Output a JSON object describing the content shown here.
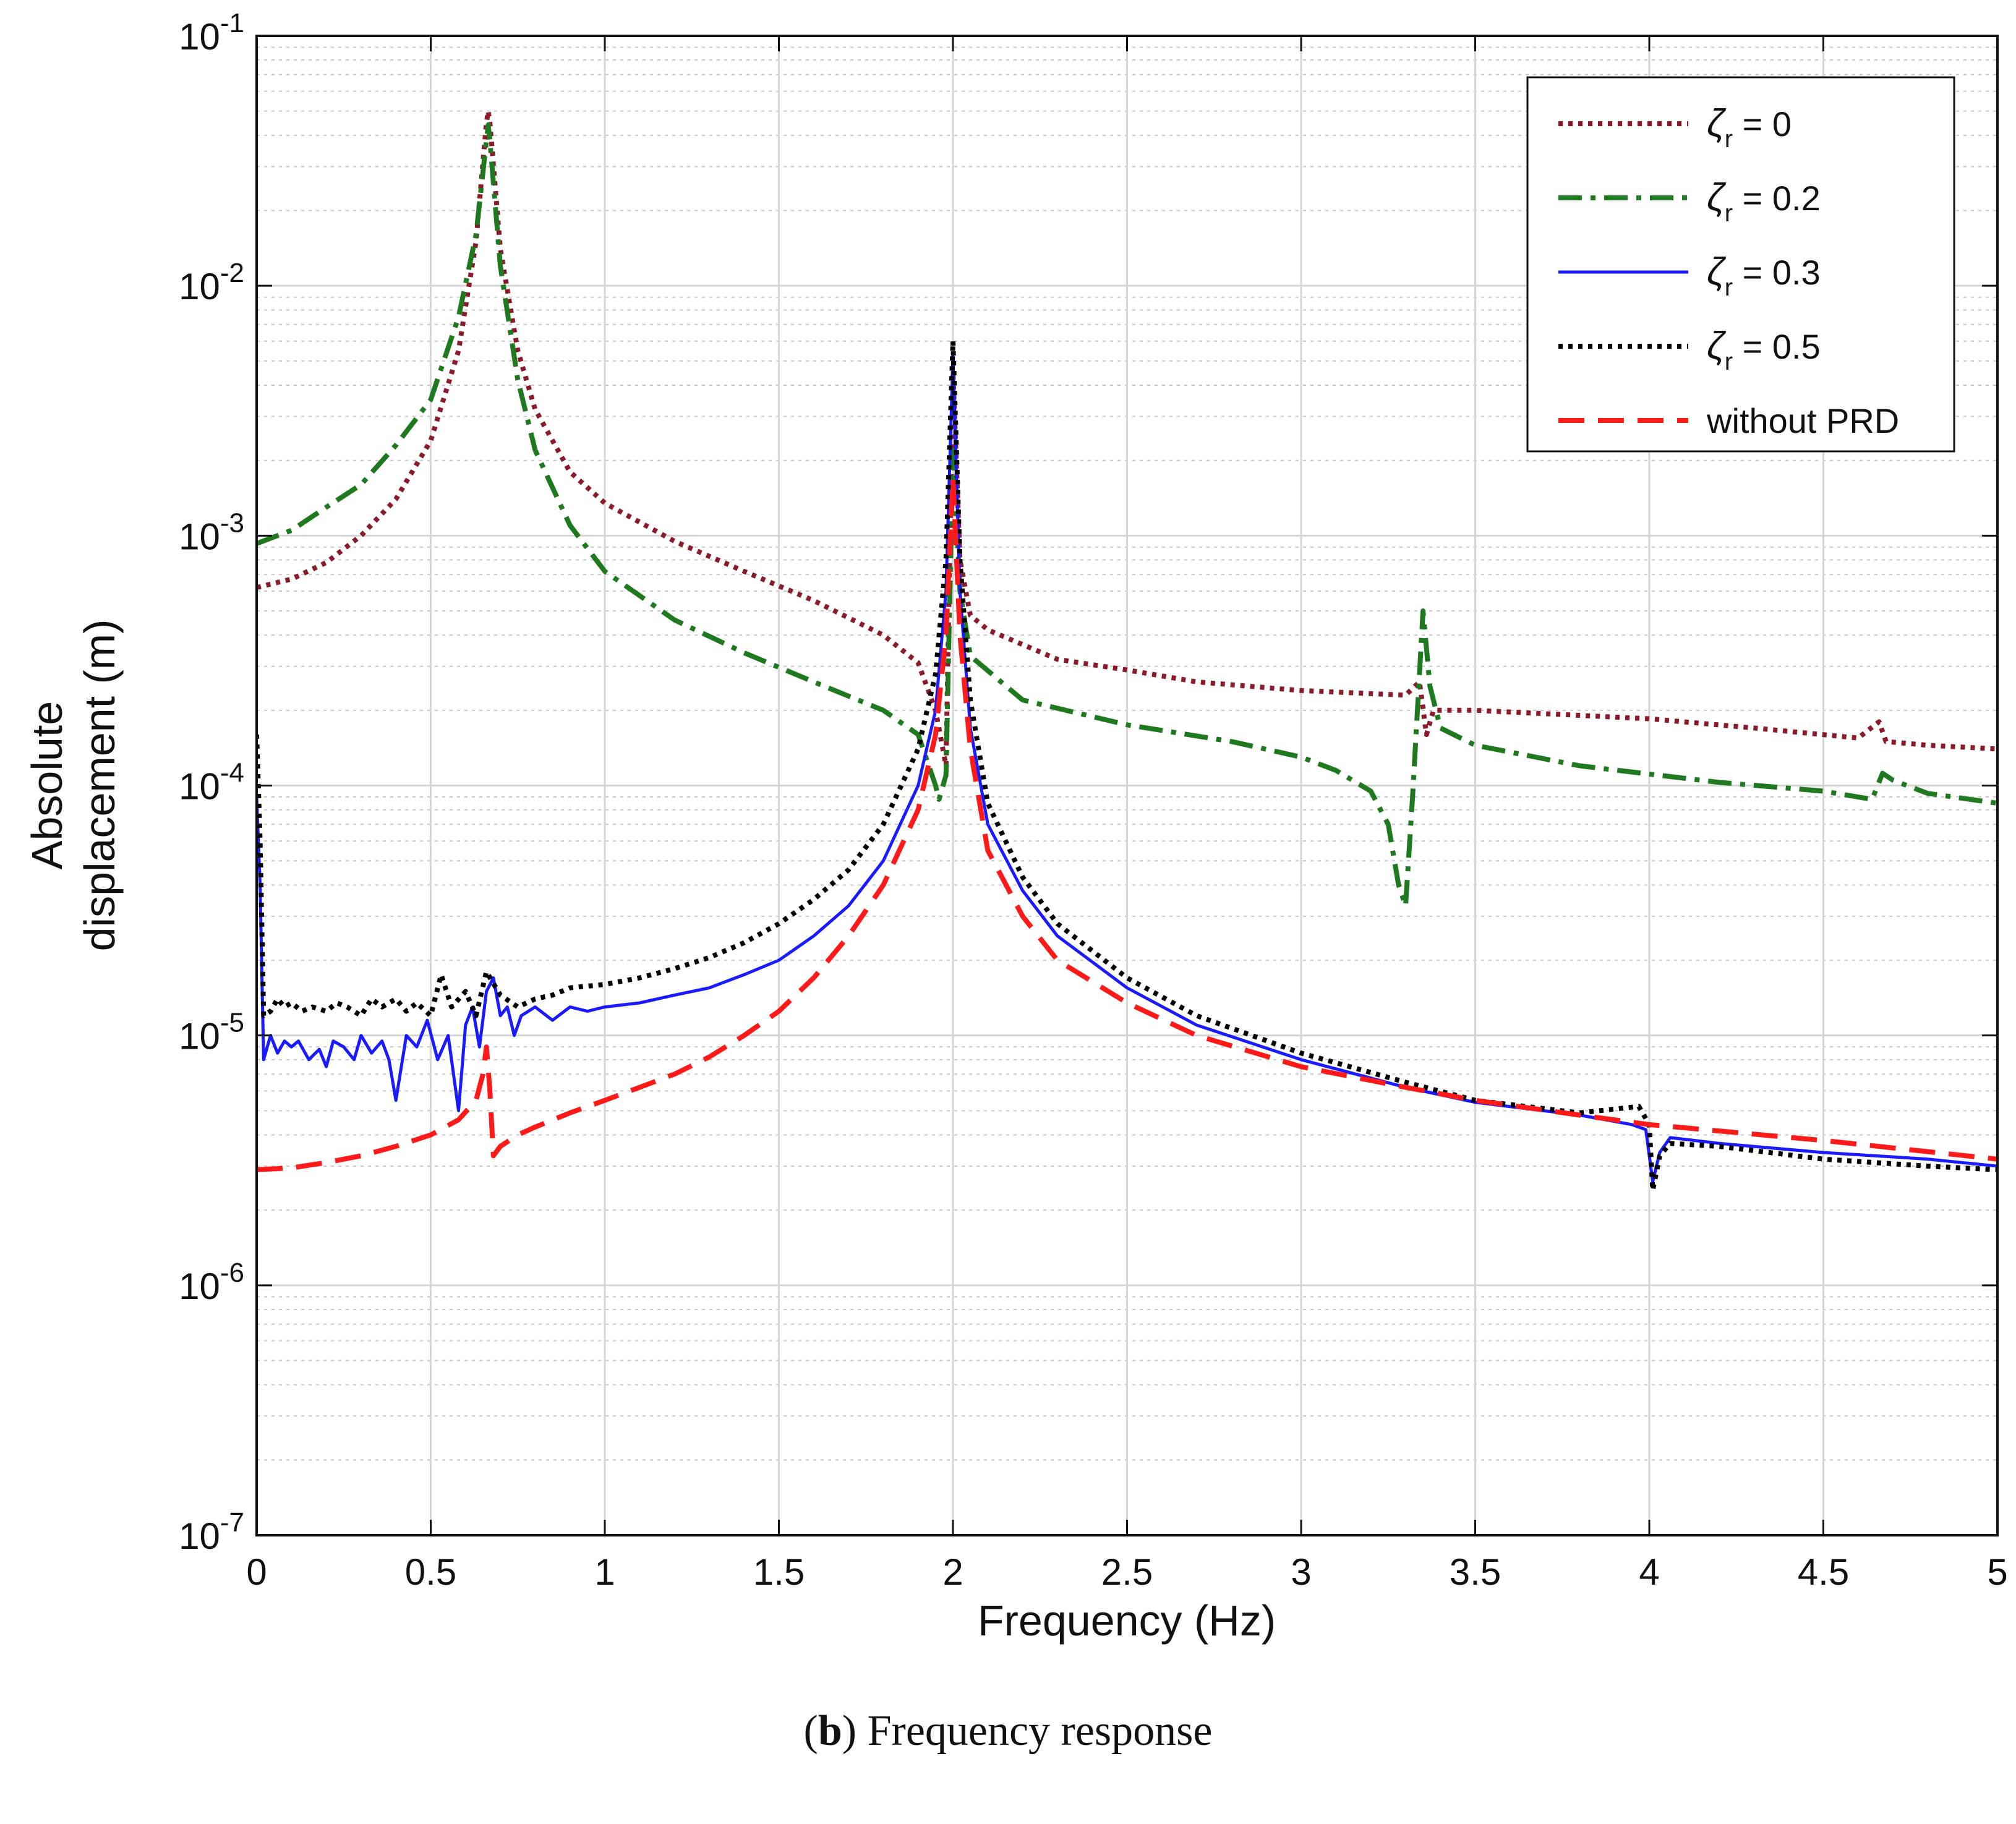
{
  "chart_data": {
    "type": "line",
    "title": "",
    "xlabel": "Frequency (Hz)",
    "ylabel_line1": "Absolute",
    "ylabel_line2": "displacement (m)",
    "xscale": "linear",
    "yscale": "log",
    "xlim": [
      0,
      5
    ],
    "ylim": [
      1e-07,
      0.1
    ],
    "grid": true,
    "minor_grid": true,
    "legend_position": "top-right",
    "x_ticks": [
      {
        "value": 0,
        "label": "0"
      },
      {
        "value": 0.5,
        "label": "0.5"
      },
      {
        "value": 1,
        "label": "1"
      },
      {
        "value": 1.5,
        "label": "1.5"
      },
      {
        "value": 2,
        "label": "2"
      },
      {
        "value": 2.5,
        "label": "2.5"
      },
      {
        "value": 3,
        "label": "3"
      },
      {
        "value": 3.5,
        "label": "3.5"
      },
      {
        "value": 4,
        "label": "4"
      },
      {
        "value": 4.5,
        "label": "4.5"
      },
      {
        "value": 5,
        "label": "5"
      }
    ],
    "y_ticks": [
      {
        "exponent": -7,
        "label_base": "10",
        "label_exp": "-7"
      },
      {
        "exponent": -6,
        "label_base": "10",
        "label_exp": "-6"
      },
      {
        "exponent": -5,
        "label_base": "10",
        "label_exp": "-5"
      },
      {
        "exponent": -4,
        "label_base": "10",
        "label_exp": "-4"
      },
      {
        "exponent": -3,
        "label_base": "10",
        "label_exp": "-3"
      },
      {
        "exponent": -2,
        "label_base": "10",
        "label_exp": "-2"
      },
      {
        "exponent": -1,
        "label_base": "10",
        "label_exp": "-1"
      }
    ],
    "series": [
      {
        "name": "ζr = 0",
        "legend_symbol": "ζ",
        "legend_sub": "r",
        "legend_value": " = 0",
        "color": "#8b1a2b",
        "style": "dotted",
        "points": [
          [
            0,
            0.00062
          ],
          [
            0.1,
            0.00067
          ],
          [
            0.2,
            0.00078
          ],
          [
            0.3,
            0.001
          ],
          [
            0.4,
            0.0014
          ],
          [
            0.5,
            0.0024
          ],
          [
            0.58,
            0.0055
          ],
          [
            0.63,
            0.015
          ],
          [
            0.66,
            0.045
          ],
          [
            0.665,
            0.05
          ],
          [
            0.67,
            0.045
          ],
          [
            0.7,
            0.014
          ],
          [
            0.75,
            0.0055
          ],
          [
            0.8,
            0.0032
          ],
          [
            0.9,
            0.0018
          ],
          [
            1.0,
            0.00135
          ],
          [
            1.2,
            0.00095
          ],
          [
            1.4,
            0.00072
          ],
          [
            1.6,
            0.00055
          ],
          [
            1.8,
            0.0004
          ],
          [
            1.9,
            0.00031
          ],
          [
            1.95,
            0.0002
          ],
          [
            1.98,
            0.00012
          ],
          [
            2.0,
            0.0045
          ],
          [
            2.02,
            0.0008
          ],
          [
            2.05,
            0.00048
          ],
          [
            2.1,
            0.00042
          ],
          [
            2.3,
            0.00032
          ],
          [
            2.5,
            0.00029
          ],
          [
            2.7,
            0.00026
          ],
          [
            3.0,
            0.00024
          ],
          [
            3.3,
            0.00023
          ],
          [
            3.34,
            0.00026
          ],
          [
            3.36,
            0.00016
          ],
          [
            3.38,
            0.0002
          ],
          [
            3.5,
            0.0002
          ],
          [
            4.0,
            0.000185
          ],
          [
            4.3,
            0.00017
          ],
          [
            4.6,
            0.000155
          ],
          [
            4.66,
            0.00018
          ],
          [
            4.68,
            0.00015
          ],
          [
            4.8,
            0.000145
          ],
          [
            5.0,
            0.00014
          ]
        ]
      },
      {
        "name": "ζr = 0.2",
        "legend_symbol": "ζ",
        "legend_sub": "r",
        "legend_value": " = 0.2",
        "color": "#1f7a1f",
        "style": "dashdot",
        "points": [
          [
            0,
            0.00093
          ],
          [
            0.1,
            0.00105
          ],
          [
            0.2,
            0.0013
          ],
          [
            0.3,
            0.0016
          ],
          [
            0.4,
            0.0023
          ],
          [
            0.5,
            0.0035
          ],
          [
            0.58,
            0.0075
          ],
          [
            0.63,
            0.016
          ],
          [
            0.66,
            0.038
          ],
          [
            0.665,
            0.044
          ],
          [
            0.67,
            0.038
          ],
          [
            0.7,
            0.012
          ],
          [
            0.75,
            0.0042
          ],
          [
            0.8,
            0.0022
          ],
          [
            0.9,
            0.0011
          ],
          [
            1.0,
            0.00072
          ],
          [
            1.2,
            0.00046
          ],
          [
            1.4,
            0.00034
          ],
          [
            1.6,
            0.00026
          ],
          [
            1.8,
            0.0002
          ],
          [
            1.9,
            0.00016
          ],
          [
            1.95,
            0.0001
          ],
          [
            1.96,
            8.8e-05
          ],
          [
            1.98,
            0.00011
          ],
          [
            2.0,
            0.0022
          ],
          [
            2.02,
            0.0006
          ],
          [
            2.05,
            0.00033
          ],
          [
            2.2,
            0.00022
          ],
          [
            2.5,
            0.000175
          ],
          [
            2.8,
            0.00015
          ],
          [
            3.0,
            0.00013
          ],
          [
            3.1,
            0.000115
          ],
          [
            3.2,
            9.5e-05
          ],
          [
            3.25,
            7e-05
          ],
          [
            3.28,
            4e-05
          ],
          [
            3.3,
            3.3e-05
          ],
          [
            3.32,
            9e-05
          ],
          [
            3.35,
            0.0005
          ],
          [
            3.37,
            0.00025
          ],
          [
            3.4,
            0.00017
          ],
          [
            3.5,
            0.000145
          ],
          [
            3.8,
            0.00012
          ],
          [
            4.2,
            0.000103
          ],
          [
            4.5,
            9.5e-05
          ],
          [
            4.64,
            8.8e-05
          ],
          [
            4.67,
            0.000112
          ],
          [
            4.7,
            0.000105
          ],
          [
            4.8,
            9.3e-05
          ],
          [
            5.0,
            8.5e-05
          ]
        ]
      },
      {
        "name": "ζr = 0.3",
        "legend_symbol": "ζ",
        "legend_sub": "r",
        "legend_value": " = 0.3",
        "color": "#1a1aff",
        "style": "solid",
        "points": [
          [
            0,
            9e-05
          ],
          [
            0.01,
            4e-05
          ],
          [
            0.02,
            8e-06
          ],
          [
            0.04,
            1e-05
          ],
          [
            0.06,
            8.5e-06
          ],
          [
            0.08,
            9.5e-06
          ],
          [
            0.1,
            9e-06
          ],
          [
            0.12,
            9.5e-06
          ],
          [
            0.15,
            8e-06
          ],
          [
            0.18,
            8.8e-06
          ],
          [
            0.2,
            7.5e-06
          ],
          [
            0.22,
            9.5e-06
          ],
          [
            0.25,
            9e-06
          ],
          [
            0.28,
            8e-06
          ],
          [
            0.3,
            1e-05
          ],
          [
            0.33,
            8.5e-06
          ],
          [
            0.36,
            9.5e-06
          ],
          [
            0.38,
            8e-06
          ],
          [
            0.4,
            5.5e-06
          ],
          [
            0.43,
            1e-05
          ],
          [
            0.46,
            9e-06
          ],
          [
            0.49,
            1.15e-05
          ],
          [
            0.52,
            8e-06
          ],
          [
            0.55,
            1e-05
          ],
          [
            0.58,
            5e-06
          ],
          [
            0.6,
            1.1e-05
          ],
          [
            0.62,
            1.3e-05
          ],
          [
            0.64,
            9e-06
          ],
          [
            0.66,
            1.5e-05
          ],
          [
            0.68,
            1.7e-05
          ],
          [
            0.7,
            1.2e-05
          ],
          [
            0.72,
            1.3e-05
          ],
          [
            0.74,
            1e-05
          ],
          [
            0.76,
            1.2e-05
          ],
          [
            0.8,
            1.3e-05
          ],
          [
            0.85,
            1.15e-05
          ],
          [
            0.9,
            1.3e-05
          ],
          [
            0.95,
            1.25e-05
          ],
          [
            1.0,
            1.3e-05
          ],
          [
            1.1,
            1.35e-05
          ],
          [
            1.2,
            1.45e-05
          ],
          [
            1.3,
            1.55e-05
          ],
          [
            1.4,
            1.75e-05
          ],
          [
            1.5,
            2e-05
          ],
          [
            1.6,
            2.5e-05
          ],
          [
            1.7,
            3.3e-05
          ],
          [
            1.8,
            5e-05
          ],
          [
            1.9,
            0.0001
          ],
          [
            1.95,
            0.0002
          ],
          [
            1.98,
            0.0006
          ],
          [
            2.0,
            0.0052
          ],
          [
            2.02,
            0.0006
          ],
          [
            2.05,
            0.00017
          ],
          [
            2.1,
            7e-05
          ],
          [
            2.2,
            3.8e-05
          ],
          [
            2.3,
            2.5e-05
          ],
          [
            2.5,
            1.55e-05
          ],
          [
            2.7,
            1.1e-05
          ],
          [
            3.0,
            8e-06
          ],
          [
            3.3,
            6.2e-06
          ],
          [
            3.5,
            5.4e-06
          ],
          [
            3.8,
            4.8e-06
          ],
          [
            3.95,
            4.4e-06
          ],
          [
            3.99,
            4.2e-06
          ],
          [
            4.01,
            2.6e-06
          ],
          [
            4.03,
            3.4e-06
          ],
          [
            4.06,
            3.9e-06
          ],
          [
            4.2,
            3.7e-06
          ],
          [
            4.5,
            3.4e-06
          ],
          [
            4.8,
            3.2e-06
          ],
          [
            5.0,
            3e-06
          ]
        ]
      },
      {
        "name": "ζr = 0.5",
        "legend_symbol": "ζ",
        "legend_sub": "r",
        "legend_value": " = 0.5",
        "color": "#000000",
        "style": "dotted",
        "points": [
          [
            0,
            0.00016
          ],
          [
            0.01,
            6e-05
          ],
          [
            0.02,
            1.2e-05
          ],
          [
            0.04,
            1.25e-05
          ],
          [
            0.06,
            1.4e-05
          ],
          [
            0.08,
            1.3e-05
          ],
          [
            0.1,
            1.35e-05
          ],
          [
            0.13,
            1.25e-05
          ],
          [
            0.16,
            1.3e-05
          ],
          [
            0.2,
            1.25e-05
          ],
          [
            0.23,
            1.35e-05
          ],
          [
            0.26,
            1.3e-05
          ],
          [
            0.3,
            1.2e-05
          ],
          [
            0.33,
            1.4e-05
          ],
          [
            0.36,
            1.3e-05
          ],
          [
            0.4,
            1.4e-05
          ],
          [
            0.43,
            1.25e-05
          ],
          [
            0.46,
            1.35e-05
          ],
          [
            0.5,
            1.2e-05
          ],
          [
            0.53,
            1.75e-05
          ],
          [
            0.56,
            1.3e-05
          ],
          [
            0.6,
            1.5e-05
          ],
          [
            0.63,
            1.2e-05
          ],
          [
            0.66,
            1.8e-05
          ],
          [
            0.7,
            1.45e-05
          ],
          [
            0.75,
            1.3e-05
          ],
          [
            0.8,
            1.4e-05
          ],
          [
            0.85,
            1.45e-05
          ],
          [
            0.9,
            1.55e-05
          ],
          [
            1.0,
            1.6e-05
          ],
          [
            1.1,
            1.7e-05
          ],
          [
            1.2,
            1.85e-05
          ],
          [
            1.3,
            2.05e-05
          ],
          [
            1.4,
            2.35e-05
          ],
          [
            1.5,
            2.8e-05
          ],
          [
            1.6,
            3.5e-05
          ],
          [
            1.7,
            4.6e-05
          ],
          [
            1.8,
            7e-05
          ],
          [
            1.9,
            0.00014
          ],
          [
            1.95,
            0.00028
          ],
          [
            1.98,
            0.0008
          ],
          [
            2.0,
            0.006
          ],
          [
            2.02,
            0.0008
          ],
          [
            2.05,
            0.00022
          ],
          [
            2.1,
            8.5e-05
          ],
          [
            2.2,
            4.3e-05
          ],
          [
            2.3,
            2.8e-05
          ],
          [
            2.5,
            1.7e-05
          ],
          [
            2.7,
            1.2e-05
          ],
          [
            3.0,
            8.5e-06
          ],
          [
            3.3,
            6.5e-06
          ],
          [
            3.5,
            5.5e-06
          ],
          [
            3.8,
            4.9e-06
          ],
          [
            3.97,
            5.2e-06
          ],
          [
            4.0,
            4.4e-06
          ],
          [
            4.01,
            2.4e-06
          ],
          [
            4.03,
            3.3e-06
          ],
          [
            4.06,
            3.7e-06
          ],
          [
            4.2,
            3.6e-06
          ],
          [
            4.5,
            3.2e-06
          ],
          [
            4.8,
            3e-06
          ],
          [
            5.0,
            2.9e-06
          ]
        ]
      },
      {
        "name": "without PRD",
        "legend_symbol": "",
        "legend_sub": "",
        "legend_value": "without PRD",
        "color": "#ff1a1a",
        "style": "dashed",
        "points": [
          [
            0,
            2.9e-06
          ],
          [
            0.1,
            2.95e-06
          ],
          [
            0.2,
            3.1e-06
          ],
          [
            0.3,
            3.3e-06
          ],
          [
            0.4,
            3.6e-06
          ],
          [
            0.5,
            4e-06
          ],
          [
            0.58,
            4.6e-06
          ],
          [
            0.63,
            5.5e-06
          ],
          [
            0.65,
            7e-06
          ],
          [
            0.66,
            9e-06
          ],
          [
            0.67,
            6e-06
          ],
          [
            0.68,
            3.3e-06
          ],
          [
            0.7,
            3.6e-06
          ],
          [
            0.75,
            4e-06
          ],
          [
            0.8,
            4.3e-06
          ],
          [
            0.9,
            4.9e-06
          ],
          [
            1.0,
            5.5e-06
          ],
          [
            1.1,
            6.2e-06
          ],
          [
            1.2,
            7e-06
          ],
          [
            1.3,
            8.2e-06
          ],
          [
            1.4,
            1e-05
          ],
          [
            1.5,
            1.25e-05
          ],
          [
            1.6,
            1.7e-05
          ],
          [
            1.7,
            2.5e-05
          ],
          [
            1.8,
            4e-05
          ],
          [
            1.9,
            8e-05
          ],
          [
            1.95,
            0.00016
          ],
          [
            1.98,
            0.0004
          ],
          [
            2.0,
            0.0017
          ],
          [
            2.02,
            0.0004
          ],
          [
            2.05,
            0.00014
          ],
          [
            2.1,
            5.5e-05
          ],
          [
            2.2,
            3e-05
          ],
          [
            2.3,
            2e-05
          ],
          [
            2.5,
            1.35e-05
          ],
          [
            2.7,
            1e-05
          ],
          [
            3.0,
            7.5e-06
          ],
          [
            3.3,
            6.2e-06
          ],
          [
            3.5,
            5.5e-06
          ],
          [
            3.8,
            4.8e-06
          ],
          [
            4.0,
            4.4e-06
          ],
          [
            4.5,
            3.8e-06
          ],
          [
            5.0,
            3.2e-06
          ]
        ]
      }
    ]
  },
  "caption": {
    "bold": "b",
    "text": ") Frequency response",
    "open": "("
  }
}
